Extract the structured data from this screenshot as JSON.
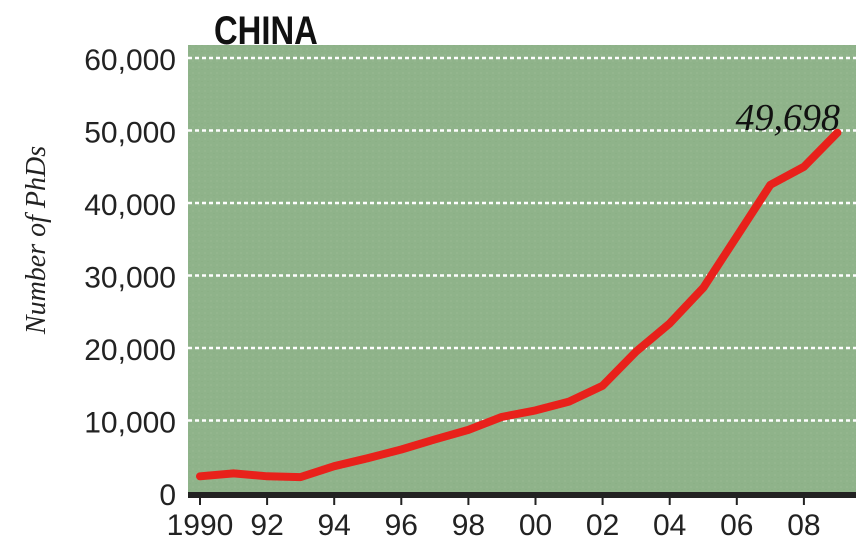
{
  "chart_data": {
    "type": "line",
    "title": "CHINA",
    "ylabel": "Number of PhDs",
    "xlabel": "",
    "ylim": [
      0,
      60000
    ],
    "yticks": [
      0,
      10000,
      20000,
      30000,
      40000,
      50000,
      60000
    ],
    "ytick_labels": [
      "0",
      "10,000",
      "20,000",
      "30,000",
      "40,000",
      "50,000",
      "60,000"
    ],
    "xlim": [
      1990,
      2009
    ],
    "xticks": [
      1990,
      1992,
      1994,
      1996,
      1998,
      2000,
      2002,
      2004,
      2006,
      2008
    ],
    "xtick_labels": [
      "1990",
      "92",
      "94",
      "96",
      "98",
      "00",
      "02",
      "04",
      "06",
      "08"
    ],
    "grid": true,
    "series": [
      {
        "x": [
          1990,
          1991,
          1992,
          1993,
          1994,
          1995,
          1996,
          1997,
          1998,
          1999,
          2000,
          2001,
          2002,
          2003,
          2004,
          2005,
          2006,
          2007,
          2008,
          2009
        ],
        "values": [
          2300,
          2700,
          2300,
          2200,
          3700,
          4800,
          6000,
          7400,
          8700,
          10500,
          11400,
          12600,
          14800,
          19500,
          23400,
          28300,
          35400,
          42500,
          45000,
          49698
        ]
      }
    ],
    "annotations": [
      {
        "text": "49,698",
        "x": 2009,
        "y": 49698
      }
    ],
    "colors": {
      "plot_bg": "#8fb38a",
      "line": "#e8211b",
      "grid": "#ffffff",
      "axis": "#222222"
    }
  }
}
